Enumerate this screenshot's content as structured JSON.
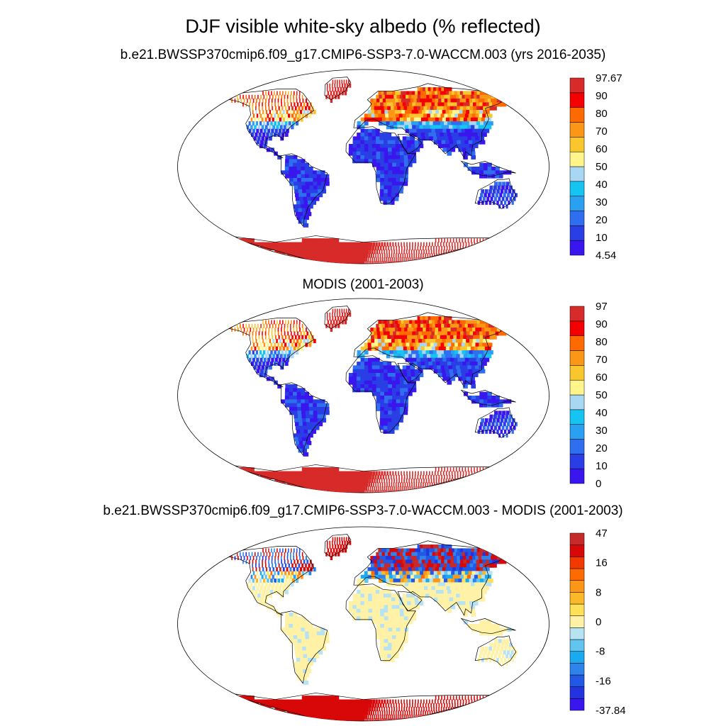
{
  "main_title": "DJF visible white-sky albedo (% reflected)",
  "panels": [
    {
      "title": "b.e21.BWSSP370cmip6.f09_g17.CMIP6-SSP3-7.0-WACCM.003 (yrs 2016-2035)",
      "field": "model",
      "colorbar": {
        "colors": [
          "#3a16ee",
          "#2a3ee6",
          "#2f6fef",
          "#2aa0f2",
          "#16c4f2",
          "#a7d7f2",
          "#fff58a",
          "#f9c62e",
          "#fb9617",
          "#ff6a00",
          "#f50000",
          "#d72b29"
        ],
        "labels": [
          "97.67",
          "90",
          "80",
          "70",
          "60",
          "50",
          "40",
          "30",
          "20",
          "10",
          "4.54"
        ]
      }
    },
    {
      "title": "MODIS (2001-2003)",
      "field": "obs",
      "colorbar": {
        "colors": [
          "#3a16ee",
          "#2a3ee6",
          "#2f6fef",
          "#2aa0f2",
          "#16c4f2",
          "#a7d7f2",
          "#fff58a",
          "#f9c62e",
          "#fb9617",
          "#ff6a00",
          "#f50000",
          "#d72b29"
        ],
        "labels": [
          "97",
          "90",
          "80",
          "70",
          "60",
          "50",
          "40",
          "30",
          "20",
          "10",
          "0"
        ]
      }
    },
    {
      "title": "b.e21.BWSSP370cmip6.f09_g17.CMIP6-SSP3-7.0-WACCM.003 - MODIS (2001-2003)",
      "field": "diff",
      "colorbar": {
        "colors": [
          "#3a16ee",
          "#2433e0",
          "#2258e6",
          "#2f84ec",
          "#1aaaf0",
          "#62c5ef",
          "#b7e2f2",
          "#fff2a6",
          "#ffe058",
          "#fbb92a",
          "#fb9617",
          "#ff6a00",
          "#f23a00",
          "#d80808",
          "#c62a2a"
        ],
        "labels": [
          "47",
          "",
          "16",
          "",
          "8",
          "",
          "0",
          "",
          "-8",
          "",
          "-16",
          "",
          "-37.84"
        ]
      }
    }
  ]
}
